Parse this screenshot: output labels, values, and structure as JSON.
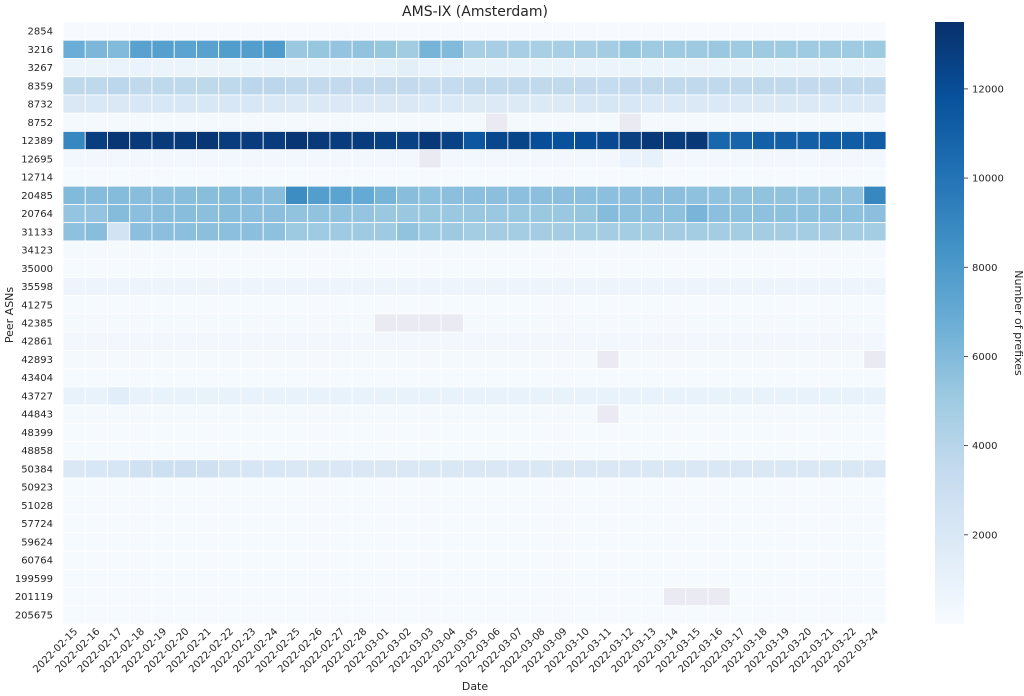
{
  "chart_data": {
    "type": "heatmap",
    "title": "AMS-IX (Amsterdam)",
    "xlabel": "Date",
    "ylabel": "Peer ASNs",
    "colorbar_label": "Number of prefixes",
    "colormap": "Blues",
    "missing_color": "#eaeaf2",
    "vmin": 0,
    "vmax": 13500,
    "colorbar_ticks": [
      2000,
      4000,
      6000,
      8000,
      10000,
      12000
    ],
    "x": [
      "2022-02-15",
      "2022-02-16",
      "2022-02-17",
      "2022-02-18",
      "2022-02-19",
      "2022-02-20",
      "2022-02-21",
      "2022-02-22",
      "2022-02-23",
      "2022-02-24",
      "2022-02-25",
      "2022-02-26",
      "2022-02-27",
      "2022-02-28",
      "2022-03-01",
      "2022-03-02",
      "2022-03-03",
      "2022-03-04",
      "2022-03-05",
      "2022-03-06",
      "2022-03-07",
      "2022-03-08",
      "2022-03-09",
      "2022-03-10",
      "2022-03-11",
      "2022-03-12",
      "2022-03-13",
      "2022-03-14",
      "2022-03-15",
      "2022-03-16",
      "2022-03-17",
      "2022-03-18",
      "2022-03-19",
      "2022-03-20",
      "2022-03-21",
      "2022-03-22",
      "2022-03-24"
    ],
    "y": [
      "2854",
      "3216",
      "3267",
      "8359",
      "8732",
      "8752",
      "12389",
      "12695",
      "12714",
      "20485",
      "20764",
      "31133",
      "34123",
      "35000",
      "35598",
      "41275",
      "42385",
      "42861",
      "42893",
      "43404",
      "43727",
      "44843",
      "48399",
      "48858",
      "50384",
      "50923",
      "51028",
      "57724",
      "59624",
      "60764",
      "199599",
      "201119",
      "205675"
    ],
    "values": [
      [
        100,
        100,
        100,
        100,
        100,
        100,
        100,
        100,
        100,
        100,
        100,
        100,
        100,
        100,
        100,
        100,
        100,
        100,
        100,
        100,
        100,
        100,
        100,
        100,
        100,
        100,
        100,
        100,
        100,
        100,
        100,
        100,
        100,
        100,
        100,
        100,
        100
      ],
      [
        6800,
        6200,
        6000,
        7500,
        7600,
        7400,
        7500,
        7800,
        7700,
        7900,
        5200,
        5300,
        5400,
        5500,
        5300,
        4900,
        6400,
        6000,
        4700,
        4700,
        4700,
        4600,
        4700,
        4700,
        4800,
        5300,
        5000,
        5000,
        5100,
        5200,
        5000,
        5000,
        5000,
        5000,
        5000,
        5000,
        5100
      ],
      [
        800,
        800,
        900,
        900,
        800,
        800,
        800,
        800,
        800,
        800,
        800,
        800,
        800,
        800,
        1000,
        1400,
        900,
        900,
        800,
        800,
        800,
        800,
        800,
        800,
        800,
        800,
        800,
        800,
        800,
        800,
        800,
        800,
        800,
        800,
        800,
        800,
        800
      ],
      [
        3700,
        3700,
        3800,
        3600,
        3700,
        3700,
        3700,
        3700,
        3800,
        3800,
        3600,
        3500,
        3500,
        3600,
        3500,
        3500,
        3300,
        3400,
        3600,
        3600,
        3600,
        3600,
        3600,
        3500,
        3400,
        3500,
        3600,
        3600,
        3600,
        3600,
        3600,
        3600,
        3600,
        3500,
        3500,
        3600,
        3600
      ],
      [
        2000,
        2000,
        2000,
        2100,
        2100,
        2100,
        2100,
        2100,
        2100,
        2000,
        1900,
        1900,
        1900,
        1900,
        1900,
        2000,
        1900,
        1900,
        1800,
        1800,
        1800,
        1800,
        1800,
        2100,
        2200,
        2100,
        1900,
        1900,
        1900,
        1900,
        1900,
        1900,
        1900,
        1900,
        1900,
        1900,
        1900
      ],
      [
        200,
        200,
        200,
        200,
        200,
        200,
        200,
        200,
        200,
        200,
        200,
        200,
        200,
        200,
        200,
        200,
        200,
        200,
        200,
        null,
        200,
        200,
        200,
        200,
        200,
        null,
        200,
        200,
        200,
        200,
        200,
        200,
        200,
        200,
        200,
        200,
        200
      ],
      [
        9000,
        12800,
        13200,
        13000,
        13000,
        13000,
        13200,
        12900,
        12900,
        12900,
        13200,
        13000,
        12900,
        12900,
        12700,
        12600,
        13100,
        12600,
        11500,
        12300,
        12500,
        12000,
        11800,
        12000,
        12200,
        12700,
        13100,
        12900,
        13100,
        10700,
        10800,
        11000,
        11100,
        11100,
        11200,
        11200,
        11200
      ],
      [
        400,
        400,
        400,
        400,
        400,
        400,
        400,
        400,
        400,
        400,
        400,
        400,
        400,
        400,
        400,
        400,
        null,
        400,
        400,
        400,
        400,
        400,
        400,
        400,
        400,
        900,
        1100,
        400,
        400,
        400,
        400,
        400,
        400,
        400,
        400,
        400,
        400
      ],
      [
        150,
        150,
        150,
        150,
        150,
        150,
        150,
        150,
        150,
        150,
        150,
        150,
        150,
        150,
        150,
        150,
        150,
        150,
        150,
        150,
        150,
        150,
        150,
        150,
        150,
        150,
        150,
        150,
        150,
        150,
        150,
        150,
        150,
        150,
        150,
        150,
        150
      ],
      [
        6000,
        5900,
        5900,
        5800,
        5800,
        5800,
        5800,
        5900,
        5900,
        5800,
        8700,
        7700,
        7400,
        7000,
        6400,
        5800,
        5600,
        5700,
        5700,
        5700,
        5700,
        5700,
        5700,
        5700,
        5700,
        5700,
        5700,
        5700,
        5600,
        5500,
        5500,
        5500,
        5500,
        5500,
        5500,
        5500,
        9000
      ],
      [
        5400,
        5400,
        5900,
        5700,
        5800,
        5800,
        5700,
        5800,
        5700,
        5700,
        5500,
        5500,
        5500,
        5400,
        5200,
        5200,
        5200,
        5200,
        5200,
        5200,
        5200,
        5200,
        5200,
        5300,
        5900,
        5600,
        5600,
        5600,
        6300,
        5700,
        5600,
        5600,
        5600,
        5600,
        5600,
        5600,
        5700
      ],
      [
        5600,
        5800,
        2500,
        5700,
        5700,
        5700,
        5700,
        5700,
        5700,
        5600,
        5100,
        5000,
        5000,
        5000,
        5000,
        5500,
        5100,
        5100,
        4800,
        4800,
        4800,
        4800,
        4800,
        4800,
        4800,
        4800,
        4800,
        4800,
        4800,
        4800,
        4800,
        4800,
        4800,
        4800,
        4800,
        4800,
        4800
      ],
      [
        200,
        200,
        200,
        200,
        200,
        200,
        200,
        200,
        200,
        200,
        200,
        200,
        200,
        200,
        200,
        200,
        200,
        200,
        200,
        200,
        200,
        200,
        200,
        200,
        200,
        200,
        200,
        200,
        200,
        200,
        200,
        200,
        200,
        200,
        200,
        200,
        200
      ],
      [
        150,
        150,
        150,
        150,
        150,
        150,
        150,
        150,
        150,
        150,
        150,
        150,
        150,
        150,
        150,
        150,
        150,
        150,
        150,
        150,
        150,
        150,
        150,
        150,
        150,
        150,
        150,
        150,
        150,
        150,
        150,
        150,
        150,
        150,
        150,
        150,
        150
      ],
      [
        700,
        700,
        700,
        700,
        700,
        700,
        700,
        700,
        700,
        700,
        700,
        700,
        700,
        700,
        700,
        700,
        700,
        700,
        700,
        700,
        700,
        700,
        700,
        700,
        700,
        700,
        700,
        700,
        700,
        700,
        700,
        700,
        700,
        700,
        700,
        700,
        700
      ],
      [
        150,
        150,
        150,
        150,
        150,
        150,
        150,
        150,
        150,
        150,
        150,
        150,
        150,
        150,
        150,
        150,
        150,
        150,
        150,
        150,
        150,
        150,
        150,
        150,
        150,
        150,
        150,
        150,
        150,
        150,
        150,
        150,
        150,
        150,
        150,
        150,
        150
      ],
      [
        200,
        200,
        200,
        200,
        200,
        200,
        200,
        200,
        200,
        200,
        200,
        200,
        200,
        200,
        null,
        null,
        null,
        null,
        200,
        200,
        200,
        200,
        200,
        200,
        200,
        200,
        200,
        200,
        200,
        200,
        200,
        200,
        200,
        200,
        200,
        200,
        200
      ],
      [
        400,
        400,
        400,
        400,
        400,
        400,
        400,
        400,
        400,
        400,
        400,
        400,
        400,
        400,
        400,
        400,
        400,
        400,
        400,
        400,
        400,
        400,
        400,
        400,
        400,
        400,
        400,
        400,
        400,
        400,
        400,
        400,
        400,
        400,
        400,
        400,
        400
      ],
      [
        200,
        200,
        200,
        200,
        200,
        200,
        200,
        200,
        200,
        200,
        200,
        200,
        200,
        200,
        200,
        200,
        200,
        200,
        200,
        200,
        200,
        200,
        200,
        200,
        null,
        200,
        200,
        200,
        200,
        200,
        200,
        200,
        200,
        200,
        200,
        200,
        null
      ],
      [
        150,
        150,
        150,
        150,
        150,
        150,
        150,
        150,
        150,
        150,
        150,
        150,
        150,
        150,
        150,
        150,
        150,
        150,
        150,
        150,
        150,
        150,
        150,
        150,
        150,
        150,
        150,
        150,
        150,
        150,
        150,
        150,
        150,
        150,
        150,
        150,
        150
      ],
      [
        1000,
        1000,
        1500,
        1000,
        1000,
        1000,
        1000,
        1000,
        1000,
        1000,
        1000,
        1000,
        1000,
        1000,
        1000,
        1000,
        1000,
        1000,
        1000,
        1000,
        1000,
        1000,
        1000,
        1000,
        1000,
        1000,
        1000,
        1000,
        1000,
        1000,
        1000,
        1000,
        1000,
        1000,
        1000,
        1000,
        1000
      ],
      [
        200,
        200,
        200,
        200,
        200,
        200,
        200,
        200,
        200,
        200,
        200,
        200,
        200,
        200,
        200,
        200,
        200,
        200,
        200,
        200,
        200,
        200,
        200,
        200,
        null,
        200,
        200,
        200,
        200,
        200,
        200,
        200,
        200,
        200,
        200,
        200,
        200
      ],
      [
        150,
        150,
        150,
        150,
        150,
        150,
        150,
        150,
        150,
        150,
        150,
        150,
        150,
        150,
        150,
        150,
        150,
        150,
        150,
        150,
        150,
        150,
        150,
        150,
        150,
        150,
        150,
        150,
        150,
        150,
        150,
        150,
        150,
        150,
        150,
        150,
        150
      ],
      [
        150,
        150,
        150,
        150,
        150,
        150,
        150,
        150,
        150,
        150,
        150,
        150,
        150,
        150,
        150,
        150,
        150,
        150,
        150,
        150,
        150,
        150,
        150,
        150,
        150,
        150,
        150,
        150,
        150,
        150,
        150,
        150,
        150,
        150,
        150,
        150,
        150
      ],
      [
        2000,
        2100,
        2200,
        2700,
        2900,
        2900,
        2800,
        2300,
        2200,
        2100,
        2000,
        2000,
        2000,
        2000,
        2000,
        2000,
        2000,
        2000,
        2000,
        2000,
        2000,
        2000,
        2000,
        2000,
        2000,
        2000,
        2000,
        2000,
        2000,
        2000,
        2000,
        2000,
        2000,
        2000,
        2000,
        2000,
        2000
      ],
      [
        150,
        150,
        150,
        150,
        150,
        150,
        150,
        150,
        150,
        150,
        150,
        150,
        150,
        150,
        150,
        150,
        150,
        150,
        150,
        150,
        150,
        150,
        150,
        150,
        150,
        150,
        150,
        150,
        150,
        150,
        150,
        150,
        150,
        150,
        150,
        150,
        150
      ],
      [
        150,
        150,
        150,
        150,
        150,
        150,
        150,
        150,
        150,
        150,
        150,
        150,
        150,
        150,
        150,
        150,
        150,
        150,
        150,
        150,
        150,
        150,
        150,
        150,
        150,
        150,
        150,
        150,
        150,
        150,
        150,
        150,
        150,
        150,
        150,
        150,
        150
      ],
      [
        150,
        150,
        150,
        150,
        150,
        150,
        150,
        150,
        150,
        150,
        150,
        150,
        150,
        150,
        150,
        150,
        150,
        150,
        150,
        150,
        150,
        150,
        150,
        150,
        150,
        150,
        150,
        150,
        150,
        150,
        150,
        150,
        150,
        150,
        150,
        150,
        150
      ],
      [
        150,
        150,
        150,
        150,
        150,
        150,
        150,
        150,
        150,
        150,
        150,
        150,
        150,
        150,
        150,
        150,
        150,
        150,
        150,
        150,
        150,
        150,
        150,
        150,
        150,
        150,
        150,
        150,
        150,
        150,
        150,
        150,
        150,
        150,
        150,
        150,
        150
      ],
      [
        150,
        150,
        150,
        150,
        150,
        150,
        150,
        150,
        150,
        150,
        150,
        150,
        150,
        150,
        150,
        150,
        150,
        150,
        150,
        150,
        150,
        150,
        150,
        150,
        150,
        150,
        150,
        150,
        150,
        150,
        150,
        150,
        150,
        150,
        150,
        150,
        150
      ],
      [
        150,
        150,
        150,
        150,
        150,
        150,
        150,
        150,
        150,
        150,
        150,
        150,
        150,
        150,
        150,
        150,
        150,
        150,
        150,
        150,
        150,
        150,
        150,
        150,
        150,
        150,
        150,
        150,
        150,
        150,
        150,
        150,
        150,
        150,
        150,
        150,
        150
      ],
      [
        150,
        150,
        150,
        150,
        150,
        150,
        150,
        150,
        150,
        150,
        150,
        150,
        150,
        150,
        150,
        150,
        150,
        150,
        150,
        150,
        150,
        150,
        150,
        150,
        150,
        150,
        150,
        null,
        null,
        null,
        150,
        150,
        150,
        150,
        150,
        150,
        150
      ],
      [
        150,
        150,
        150,
        150,
        150,
        150,
        150,
        150,
        150,
        150,
        150,
        150,
        150,
        150,
        150,
        150,
        150,
        150,
        150,
        150,
        150,
        150,
        150,
        150,
        150,
        150,
        150,
        150,
        150,
        150,
        150,
        150,
        150,
        150,
        150,
        150,
        150
      ]
    ]
  }
}
